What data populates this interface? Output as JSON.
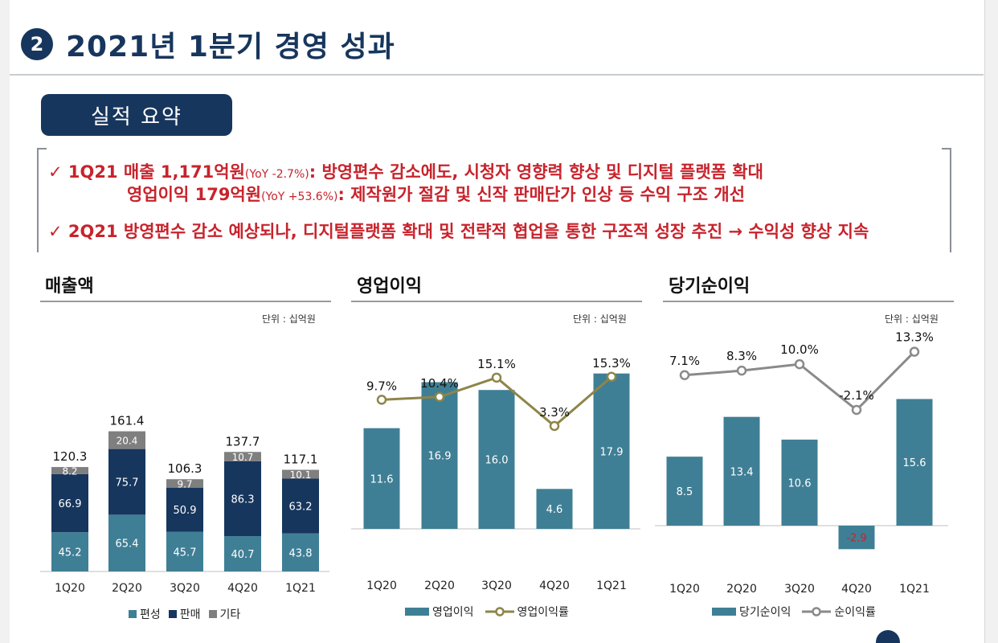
{
  "header": {
    "badge": "2",
    "title": "2021년 1분기 경영 성과"
  },
  "summary_pill": "실적 요약",
  "summary": {
    "line1_main": "✓ 1Q21 매출 1,171억원",
    "line1_small": "(YoY -2.7%)",
    "line1_rest": ": 방영편수 감소에도, 시청자 영향력 향상 및 디지털 플랫폼 확대",
    "line2_main": "영업이익 179억원",
    "line2_small": "(YoY +53.6%)",
    "line2_rest": ": 제작원가 절감 및 신작 판매단가 인상 등 수익 구조 개선",
    "line3": "✓ 2Q21 방영편수 감소 예상되나, 디지털플랫폼 확대 및 전략적 협업을 통한 구조적 성장 추진 → 수익성 향상 지속"
  },
  "unit_label": "단위 : 십억원",
  "colors": {
    "navy": "#17365d",
    "teal": "#3f7f95",
    "grey": "#7f7f7f",
    "gold": "#8e8548",
    "rate_grey": "#8a8a8a",
    "red": "#c8232c"
  },
  "chart_data": [
    {
      "type": "bar",
      "title": "매출액",
      "stacked": true,
      "categories": [
        "1Q20",
        "2Q20",
        "3Q20",
        "4Q20",
        "1Q21"
      ],
      "series": [
        {
          "name": "편성",
          "values": [
            45.2,
            65.4,
            45.7,
            40.7,
            43.8
          ]
        },
        {
          "name": "판매",
          "values": [
            66.9,
            75.7,
            50.9,
            86.3,
            63.2
          ]
        },
        {
          "name": "기타",
          "values": [
            8.2,
            20.4,
            9.7,
            10.7,
            10.1
          ]
        }
      ],
      "totals": [
        120.3,
        161.4,
        106.3,
        137.7,
        117.1
      ],
      "legend_position": "bottom"
    },
    {
      "type": "bar",
      "title": "영업이익",
      "categories": [
        "1Q20",
        "2Q20",
        "3Q20",
        "4Q20",
        "1Q21"
      ],
      "series": [
        {
          "name": "영업이익",
          "values": [
            11.6,
            16.9,
            16.0,
            4.6,
            17.9
          ]
        },
        {
          "name": "영업이익률",
          "type": "line",
          "values": [
            9.7,
            10.4,
            15.1,
            3.3,
            15.3
          ],
          "labels": [
            "9.7%",
            "10.4%",
            "15.1%",
            "3.3%",
            "15.3%"
          ]
        }
      ],
      "legend_position": "bottom"
    },
    {
      "type": "bar",
      "title": "당기순이익",
      "categories": [
        "1Q20",
        "2Q20",
        "3Q20",
        "4Q20",
        "1Q21"
      ],
      "series": [
        {
          "name": "당기순이익",
          "values": [
            8.5,
            13.4,
            10.6,
            -2.9,
            15.6
          ]
        },
        {
          "name": "순이익률",
          "type": "line",
          "values": [
            7.1,
            8.3,
            10.0,
            -2.1,
            13.3
          ],
          "labels": [
            "7.1%",
            "8.3%",
            "10.0%",
            "-2.1%",
            "13.3%"
          ]
        }
      ],
      "legend_position": "bottom"
    }
  ]
}
